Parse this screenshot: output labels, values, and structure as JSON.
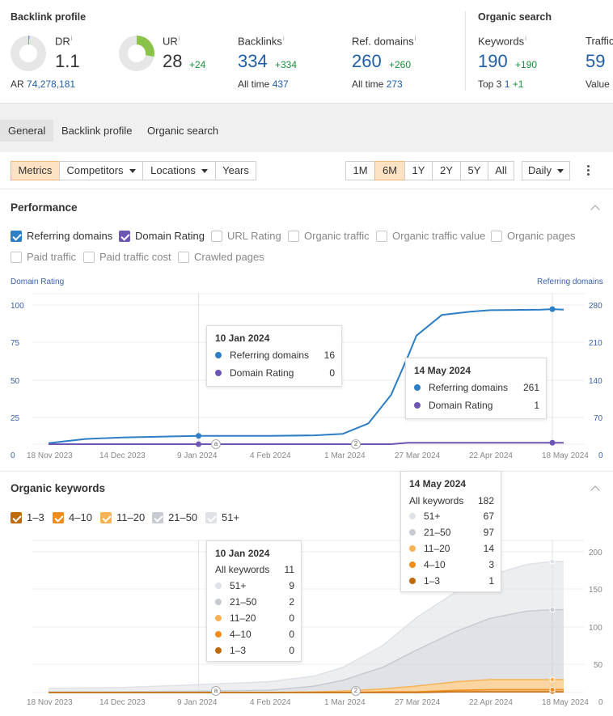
{
  "stats": {
    "backlink_profile_title": "Backlink profile",
    "organic_search_title": "Organic search",
    "dr": {
      "label": "DR",
      "value": "1.1",
      "progress": 0.011
    },
    "ar": {
      "label": "AR",
      "value": "74,278,181"
    },
    "ur": {
      "label": "UR",
      "value": "28",
      "delta": "+24",
      "progress": 0.28
    },
    "backlinks": {
      "label": "Backlinks",
      "value": "334",
      "delta": "+334",
      "sub_label": "All time",
      "sub_value": "437"
    },
    "ref_domains": {
      "label": "Ref. domains",
      "value": "260",
      "delta": "+260",
      "sub_label": "All time",
      "sub_value": "273"
    },
    "keywords": {
      "label": "Keywords",
      "value": "190",
      "delta": "+190",
      "sub_label": "Top 3",
      "sub_value": "1",
      "sub_delta": "+1"
    },
    "traffic": {
      "label": "Traffic",
      "value": "59",
      "sub_label": "Value"
    },
    "info_icon": "i"
  },
  "tabs": [
    "General",
    "Backlink profile",
    "Organic search"
  ],
  "toolbar": {
    "metrics": "Metrics",
    "competitors": "Competitors",
    "locations": "Locations",
    "years": "Years",
    "ranges": [
      "1M",
      "6M",
      "1Y",
      "2Y",
      "5Y",
      "All"
    ],
    "selected_range": "6M",
    "interval": "Daily"
  },
  "performance": {
    "title": "Performance",
    "checkboxes": [
      {
        "label": "Referring domains",
        "checked": true,
        "color": "#2d7ec4"
      },
      {
        "label": "Domain Rating",
        "checked": true,
        "color": "#6e56b6"
      },
      {
        "label": "URL Rating",
        "checked": false
      },
      {
        "label": "Organic traffic",
        "checked": false
      },
      {
        "label": "Organic traffic value",
        "checked": false
      },
      {
        "label": "Organic pages",
        "checked": false
      },
      {
        "label": "Paid traffic",
        "checked": false
      },
      {
        "label": "Paid traffic cost",
        "checked": false
      },
      {
        "label": "Crawled pages",
        "checked": false
      }
    ],
    "left_axis_title": "Domain Rating",
    "right_axis_title": "Referring domains",
    "left_ticks": [
      "100",
      "75",
      "50",
      "25",
      "0"
    ],
    "right_ticks": [
      "280",
      "210",
      "140",
      "70",
      "0"
    ],
    "x_ticks": [
      "18 Nov 2023",
      "14 Dec 2023",
      "9 Jan 2024",
      "4 Feb 2024",
      "1 Mar 2024",
      "27 Mar 2024",
      "22 Apr 2024",
      "18 May 2024"
    ],
    "markers": [
      "a",
      "2"
    ],
    "tooltip1": {
      "title": "10 Jan 2024",
      "rows": [
        {
          "label": "Referring domains",
          "value": "16"
        },
        {
          "label": "Domain Rating",
          "value": "0"
        }
      ]
    },
    "tooltip2": {
      "title": "14 May 2024",
      "rows": [
        {
          "label": "Referring domains",
          "value": "261"
        },
        {
          "label": "Domain Rating",
          "value": "1"
        }
      ]
    }
  },
  "organic_keywords": {
    "title": "Organic keywords",
    "checkboxes": [
      {
        "label": "1–3",
        "color": "#c06a0e"
      },
      {
        "label": "4–10",
        "color": "#f08c1a"
      },
      {
        "label": "11–20",
        "color": "#f6b355"
      },
      {
        "label": "21–50",
        "color": "#c7cbd1"
      },
      {
        "label": "51+",
        "color": "#dfe2e6"
      }
    ],
    "right_ticks": [
      "200",
      "150",
      "100",
      "50",
      "0"
    ],
    "x_ticks": [
      "18 Nov 2023",
      "14 Dec 2023",
      "9 Jan 2024",
      "4 Feb 2024",
      "1 Mar 2024",
      "27 Mar 2024",
      "22 Apr 2024",
      "18 May 2024"
    ],
    "markers": [
      "a",
      "2"
    ],
    "tooltip1": {
      "title": "10 Jan 2024",
      "all_label": "All keywords",
      "all_value": "11",
      "rows": [
        {
          "label": "51+",
          "value": "9"
        },
        {
          "label": "21–50",
          "value": "2"
        },
        {
          "label": "11–20",
          "value": "0"
        },
        {
          "label": "4–10",
          "value": "0"
        },
        {
          "label": "1–3",
          "value": "0"
        }
      ]
    },
    "tooltip2": {
      "title": "14 May 2024",
      "all_label": "All keywords",
      "all_value": "182",
      "rows": [
        {
          "label": "51+",
          "value": "67"
        },
        {
          "label": "21–50",
          "value": "97"
        },
        {
          "label": "11–20",
          "value": "14"
        },
        {
          "label": "4–10",
          "value": "3"
        },
        {
          "label": "1–3",
          "value": "1"
        }
      ]
    }
  },
  "chart_data": [
    {
      "type": "line",
      "title": "Performance",
      "x": [
        "2023-11-18",
        "2023-12-01",
        "2023-12-14",
        "2024-01-01",
        "2024-01-10",
        "2024-02-04",
        "2024-02-20",
        "2024-03-01",
        "2024-03-10",
        "2024-03-18",
        "2024-03-24",
        "2024-03-27",
        "2024-04-05",
        "2024-04-15",
        "2024-04-22",
        "2024-05-10",
        "2024-05-14",
        "2024-05-18"
      ],
      "series": [
        {
          "name": "Referring domains",
          "axis": "right",
          "values": [
            2,
            10,
            13,
            15,
            16,
            16,
            17,
            20,
            40,
            95,
            170,
            210,
            250,
            256,
            259,
            260,
            261,
            260
          ]
        },
        {
          "name": "Domain Rating",
          "axis": "left",
          "values": [
            0,
            0,
            0,
            0,
            0,
            0,
            0,
            0,
            0,
            0,
            1,
            1,
            1,
            1,
            1,
            1,
            1,
            1
          ]
        }
      ],
      "ylim_left": [
        0,
        100
      ],
      "ylim_right": [
        0,
        280
      ]
    },
    {
      "type": "area",
      "title": "Organic keywords",
      "x": [
        "2023-11-18",
        "2023-12-14",
        "2024-01-10",
        "2024-02-04",
        "2024-02-20",
        "2024-03-01",
        "2024-03-15",
        "2024-03-27",
        "2024-04-10",
        "2024-04-22",
        "2024-05-05",
        "2024-05-14",
        "2024-05-18"
      ],
      "series": [
        {
          "name": "1–3",
          "values": [
            0,
            0,
            0,
            0,
            0,
            0,
            0,
            0,
            1,
            1,
            1,
            1,
            1
          ]
        },
        {
          "name": "4–10",
          "values": [
            0,
            0,
            0,
            0,
            0,
            0,
            1,
            1,
            2,
            3,
            3,
            3,
            3
          ]
        },
        {
          "name": "11–20",
          "values": [
            0,
            0,
            0,
            0,
            1,
            2,
            4,
            8,
            12,
            14,
            14,
            14,
            14
          ]
        },
        {
          "name": "21–50",
          "values": [
            1,
            1,
            2,
            3,
            8,
            15,
            30,
            50,
            70,
            85,
            95,
            97,
            97
          ]
        },
        {
          "name": "51+",
          "values": [
            5,
            6,
            9,
            12,
            14,
            18,
            30,
            45,
            55,
            60,
            65,
            67,
            67
          ]
        }
      ],
      "ylim": [
        0,
        200
      ]
    }
  ]
}
